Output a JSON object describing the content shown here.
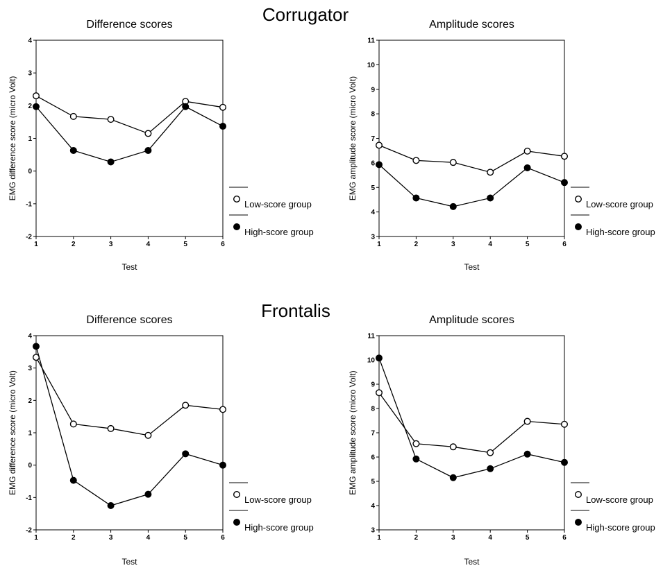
{
  "sections": [
    {
      "title": "Corrugator"
    },
    {
      "title": "Frontalis"
    }
  ],
  "chart_data": [
    {
      "type": "line",
      "title": "Difference scores",
      "xlabel": "Test",
      "ylabel": "EMG difference score (micro Volt)",
      "categories": [
        "1",
        "2",
        "3",
        "4",
        "5",
        "6"
      ],
      "xlim": [
        1,
        6
      ],
      "ylim": [
        -2,
        4
      ],
      "yticks": [
        "-2",
        "-1",
        "0",
        "1",
        "2",
        "3",
        "4"
      ],
      "series": [
        {
          "name": "Low-score group",
          "marker": "open-circle",
          "values": [
            2.3,
            1.67,
            1.58,
            1.15,
            2.13,
            1.95
          ]
        },
        {
          "name": "High-score group",
          "marker": "filled-circle",
          "values": [
            1.97,
            0.63,
            0.28,
            0.63,
            1.97,
            1.37
          ]
        }
      ]
    },
    {
      "type": "line",
      "title": "Amplitude scores",
      "xlabel": "Test",
      "ylabel": "EMG amplitude score (micro Volt)",
      "categories": [
        "1",
        "2",
        "3",
        "4",
        "5",
        "6"
      ],
      "xlim": [
        1,
        6
      ],
      "ylim": [
        3,
        11
      ],
      "yticks": [
        "3",
        "4",
        "5",
        "6",
        "7",
        "8",
        "9",
        "10",
        "11"
      ],
      "series": [
        {
          "name": "Low-score group",
          "marker": "open-circle",
          "values": [
            6.72,
            6.1,
            6.02,
            5.62,
            6.48,
            6.27
          ]
        },
        {
          "name": "High-score group",
          "marker": "filled-circle",
          "values": [
            5.93,
            4.57,
            4.22,
            4.57,
            5.8,
            5.2
          ]
        }
      ]
    },
    {
      "type": "line",
      "title": "Difference scores",
      "xlabel": "Test",
      "ylabel": "EMG difference score (micro Volt)",
      "categories": [
        "1",
        "2",
        "3",
        "4",
        "5",
        "6"
      ],
      "xlim": [
        1,
        6
      ],
      "ylim": [
        -2,
        4
      ],
      "yticks": [
        "-2",
        "-1",
        "0",
        "1",
        "2",
        "3",
        "4"
      ],
      "series": [
        {
          "name": "Low-score group",
          "marker": "open-circle",
          "values": [
            3.33,
            1.27,
            1.13,
            0.92,
            1.85,
            1.72
          ]
        },
        {
          "name": "High-score group",
          "marker": "filled-circle",
          "values": [
            3.67,
            -0.47,
            -1.25,
            -0.9,
            0.35,
            0.0
          ]
        }
      ]
    },
    {
      "type": "line",
      "title": "Amplitude scores",
      "xlabel": "Test",
      "ylabel": "EMG amplitude score (micro Volt)",
      "categories": [
        "1",
        "2",
        "3",
        "4",
        "5",
        "6"
      ],
      "xlim": [
        1,
        6
      ],
      "ylim": [
        3,
        11
      ],
      "yticks": [
        "3",
        "4",
        "5",
        "6",
        "7",
        "8",
        "9",
        "10",
        "11"
      ],
      "series": [
        {
          "name": "Low-score group",
          "marker": "open-circle",
          "values": [
            8.65,
            6.55,
            6.42,
            6.18,
            7.47,
            7.35
          ]
        },
        {
          "name": "High-score group",
          "marker": "filled-circle",
          "values": [
            10.08,
            5.92,
            5.15,
            5.52,
            6.12,
            5.78
          ]
        }
      ]
    }
  ]
}
